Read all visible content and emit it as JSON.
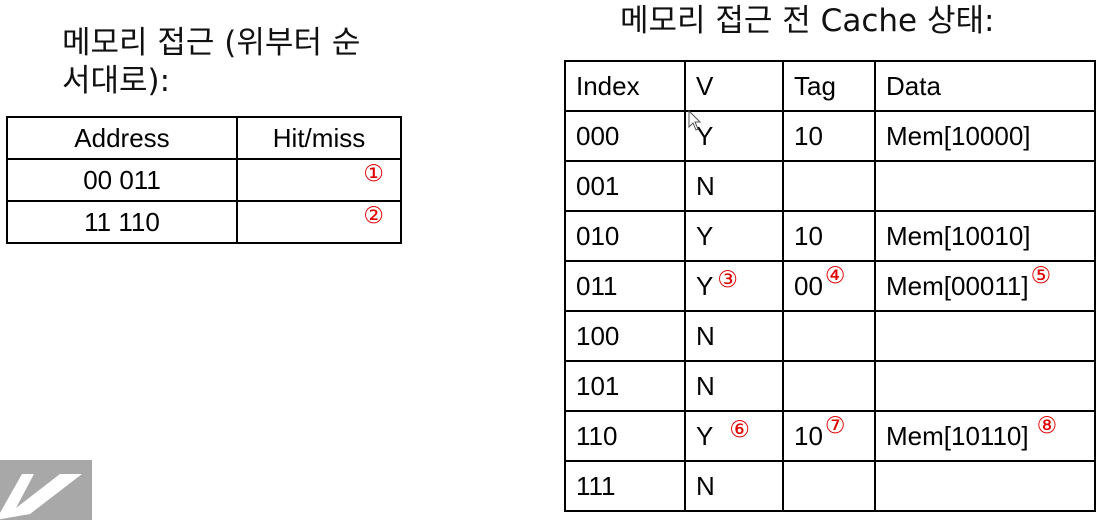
{
  "access": {
    "heading": "메모리 접근 (위부터 순서대로):",
    "columns": [
      "Address",
      "Hit/miss"
    ],
    "rows": [
      {
        "address": "00 011",
        "hit_miss": "",
        "marker": "①"
      },
      {
        "address": "11 110",
        "hit_miss": "",
        "marker": "②"
      }
    ]
  },
  "cache": {
    "heading": "메모리 접근 전 Cache 상태:",
    "columns": [
      "Index",
      "V",
      "Tag",
      "Data"
    ],
    "rows": [
      {
        "index": "000",
        "v": "Y",
        "v_marker": "",
        "tag": "10",
        "tag_marker": "",
        "data": "Mem[10000]",
        "data_marker": ""
      },
      {
        "index": "001",
        "v": "N",
        "v_marker": "",
        "tag": "",
        "tag_marker": "",
        "data": "",
        "data_marker": ""
      },
      {
        "index": "010",
        "v": "Y",
        "v_marker": "",
        "tag": "10",
        "tag_marker": "",
        "data": "Mem[10010]",
        "data_marker": ""
      },
      {
        "index": "011",
        "v": "Y",
        "v_marker": "③",
        "tag": "00",
        "tag_marker": "④",
        "data": "Mem[00011]",
        "data_marker": "⑤"
      },
      {
        "index": "100",
        "v": "N",
        "v_marker": "",
        "tag": "",
        "tag_marker": "",
        "data": "",
        "data_marker": ""
      },
      {
        "index": "101",
        "v": "N",
        "v_marker": "",
        "tag": "",
        "tag_marker": "",
        "data": "",
        "data_marker": ""
      },
      {
        "index": "110",
        "v": "Y",
        "v_marker": "⑥",
        "tag": "10",
        "tag_marker": "⑦",
        "data": "Mem[10110]",
        "data_marker": "⑧"
      },
      {
        "index": "111",
        "v": "N",
        "v_marker": "",
        "tag": "",
        "tag_marker": "",
        "data": "",
        "data_marker": ""
      }
    ]
  },
  "colors": {
    "marker": "#e00000",
    "logo_fragment": "#a8a8a8"
  },
  "icons": {
    "cursor": "mouse-cursor-icon",
    "logo": "logo-fragment"
  }
}
